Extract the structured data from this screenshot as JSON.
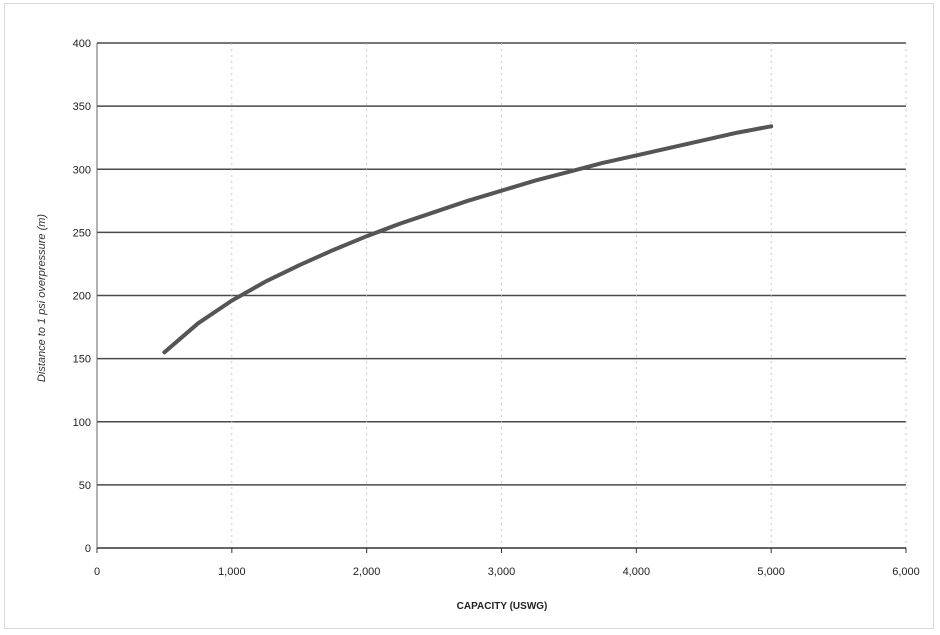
{
  "chart_data": {
    "type": "line",
    "title": "",
    "xlabel": "CAPACITY (USWG)",
    "ylabel": "Distance to 1 psi overpressure (m)",
    "xlim": [
      0,
      6000
    ],
    "ylim": [
      0,
      400
    ],
    "x_ticks": [
      "0",
      "1,000",
      "2,000",
      "3,000",
      "4,000",
      "5,000",
      "6,000"
    ],
    "y_ticks": [
      "0",
      "50",
      "100",
      "150",
      "200",
      "250",
      "300",
      "350",
      "400"
    ],
    "grid": true,
    "legend": "none",
    "line_color": "#555555",
    "series": [
      {
        "x": [
          500,
          750,
          1000,
          1250,
          1500,
          1750,
          2000,
          2250,
          2500,
          2750,
          3000,
          3250,
          3500,
          3750,
          4000,
          4250,
          4500,
          4750,
          5000
        ],
        "y": [
          155,
          178,
          196,
          211,
          224,
          236,
          247,
          257,
          266,
          275,
          283,
          291,
          298,
          305,
          311,
          317,
          323,
          329,
          334
        ]
      }
    ]
  }
}
